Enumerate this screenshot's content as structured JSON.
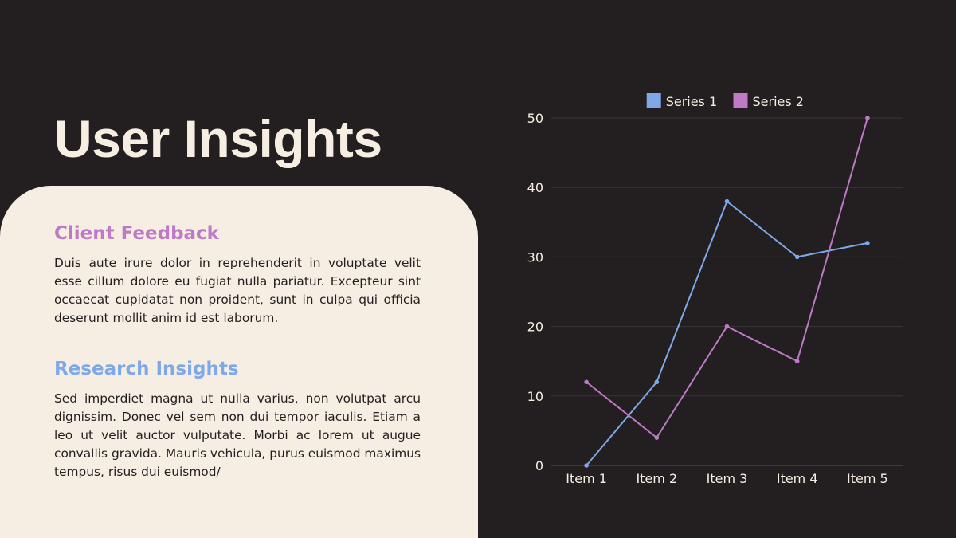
{
  "slide": {
    "title": "User Insights"
  },
  "sections": [
    {
      "heading": "Client Feedback",
      "body": "Duis aute irure dolor in reprehenderit in voluptate velit esse cillum dolore eu fugiat nulla pariatur. Excepteur sint occaecat cupidatat non proident, sunt in culpa qui officia deserunt mollit anim id est laborum.",
      "color": "#BE79C7"
    },
    {
      "heading": "Research Insights",
      "body": "Sed imperdiet magna ut nulla varius, non volutpat arcu dignissim. Donec vel sem non dui tempor iaculis. Etiam a leo ut velit auctor vulputate. Morbi ac lorem ut augue convallis gravida. Mauris vehicula, purus euismod maximus tempus, risus dui euismod/",
      "color": "#7FA8E8"
    }
  ],
  "colors": {
    "background": "#231F20",
    "card": "#F6EEE3",
    "title_text": "#F6EEE3",
    "gridline": "#3A3536",
    "axis_text": "#F6EEE3"
  },
  "chart_data": {
    "type": "line",
    "categories": [
      "Item 1",
      "Item 2",
      "Item 3",
      "Item 4",
      "Item 5"
    ],
    "series": [
      {
        "name": "Series 1",
        "values": [
          0,
          12,
          38,
          30,
          32
        ],
        "color": "#7FA8E8"
      },
      {
        "name": "Series 2",
        "values": [
          12,
          4,
          20,
          15,
          50
        ],
        "color": "#BE79C7"
      }
    ],
    "ylim": [
      0,
      50
    ],
    "yticks": [
      0,
      10,
      20,
      30,
      40,
      50
    ],
    "grid": true,
    "legend": "top-center",
    "title": "",
    "xlabel": "",
    "ylabel": ""
  }
}
